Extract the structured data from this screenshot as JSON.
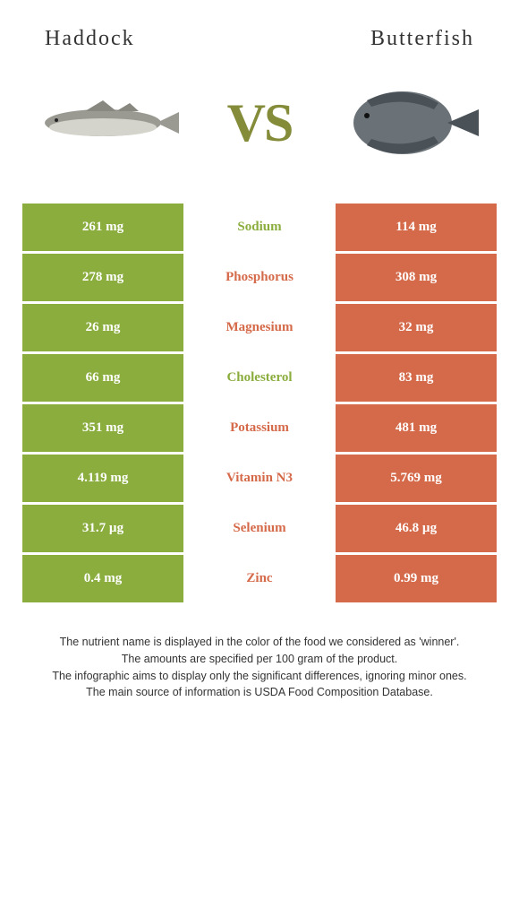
{
  "header": {
    "left_title": "Haddock",
    "right_title": "Butterfish",
    "vs_label": "VS"
  },
  "colors": {
    "left": "#8aad3e",
    "right": "#d56a4a",
    "vs": "#848c3a"
  },
  "fish": {
    "haddock": {
      "body_color": "#9a9a92",
      "belly_color": "#d4d4cc"
    },
    "butterfish": {
      "body_color": "#6a7278",
      "fin_color": "#4a5258"
    }
  },
  "rows": [
    {
      "left": "261 mg",
      "label": "Sodium",
      "right": "114 mg",
      "winner": "left"
    },
    {
      "left": "278 mg",
      "label": "Phosphorus",
      "right": "308 mg",
      "winner": "right"
    },
    {
      "left": "26 mg",
      "label": "Magnesium",
      "right": "32 mg",
      "winner": "right"
    },
    {
      "left": "66 mg",
      "label": "Cholesterol",
      "right": "83 mg",
      "winner": "left"
    },
    {
      "left": "351 mg",
      "label": "Potassium",
      "right": "481 mg",
      "winner": "right"
    },
    {
      "left": "4.119 mg",
      "label": "Vitamin N3",
      "right": "5.769 mg",
      "winner": "right"
    },
    {
      "left": "31.7 µg",
      "label": "Selenium",
      "right": "46.8 µg",
      "winner": "right"
    },
    {
      "left": "0.4 mg",
      "label": "Zinc",
      "right": "0.99 mg",
      "winner": "right"
    }
  ],
  "footer": {
    "line1": "The nutrient name is displayed in the color of the food we considered as 'winner'.",
    "line2": "The amounts are specified per 100 gram of the product.",
    "line3": "The infographic aims to display only the significant differences, ignoring minor ones.",
    "line4": "The main source of information is USDA Food Composition Database."
  }
}
